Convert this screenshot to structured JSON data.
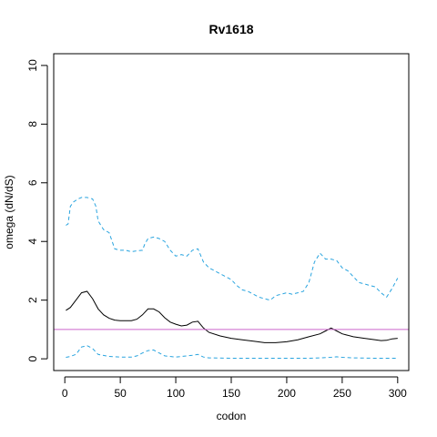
{
  "chart_data": {
    "type": "line",
    "title": "Rv1618",
    "xlabel": "codon",
    "ylabel": "omega (dN/dS)",
    "xlim": [
      -10,
      310
    ],
    "ylim": [
      -0.4,
      10.4
    ],
    "x_ticks": [
      0,
      50,
      100,
      150,
      200,
      250,
      300
    ],
    "y_ticks": [
      0,
      2,
      4,
      6,
      8,
      10
    ],
    "grid": false,
    "reference_line": {
      "y": 1,
      "color": "#cc66cc"
    },
    "series": [
      {
        "style": "solid",
        "color": "#000000",
        "x": [
          1,
          5,
          10,
          15,
          20,
          25,
          30,
          35,
          40,
          45,
          50,
          55,
          60,
          65,
          70,
          75,
          80,
          85,
          90,
          95,
          100,
          105,
          110,
          115,
          120,
          125,
          130,
          140,
          150,
          160,
          170,
          180,
          190,
          200,
          210,
          220,
          230,
          235,
          240,
          245,
          250,
          260,
          270,
          280,
          285,
          290,
          295,
          300
        ],
        "values": [
          1.65,
          1.75,
          2.0,
          2.25,
          2.3,
          2.05,
          1.7,
          1.5,
          1.38,
          1.32,
          1.3,
          1.3,
          1.3,
          1.35,
          1.5,
          1.7,
          1.7,
          1.6,
          1.4,
          1.25,
          1.18,
          1.12,
          1.15,
          1.25,
          1.28,
          1.05,
          0.9,
          0.78,
          0.7,
          0.65,
          0.6,
          0.55,
          0.55,
          0.58,
          0.65,
          0.75,
          0.85,
          0.95,
          1.05,
          0.95,
          0.85,
          0.75,
          0.7,
          0.65,
          0.62,
          0.63,
          0.68,
          0.7
        ]
      },
      {
        "style": "dashed",
        "color": "#29a4df",
        "x": [
          1,
          3,
          5,
          8,
          10,
          12,
          15,
          20,
          25,
          28,
          30,
          35,
          40,
          45,
          50,
          55,
          60,
          65,
          70,
          72,
          75,
          80,
          85,
          90,
          95,
          100,
          105,
          110,
          115,
          120,
          125,
          130,
          135,
          140,
          145,
          150,
          155,
          160,
          165,
          170,
          175,
          180,
          185,
          190,
          195,
          200,
          205,
          210,
          215,
          220,
          225,
          230,
          235,
          240,
          245,
          250,
          255,
          260,
          265,
          270,
          275,
          280,
          285,
          290,
          295,
          300
        ],
        "values": [
          4.55,
          4.6,
          5.2,
          5.35,
          5.4,
          5.45,
          5.5,
          5.5,
          5.45,
          5.2,
          4.7,
          4.4,
          4.3,
          3.75,
          3.7,
          3.7,
          3.65,
          3.68,
          3.7,
          3.9,
          4.1,
          4.15,
          4.1,
          4.0,
          3.7,
          3.5,
          3.55,
          3.5,
          3.7,
          3.75,
          3.3,
          3.1,
          3.0,
          2.9,
          2.8,
          2.7,
          2.5,
          2.35,
          2.3,
          2.2,
          2.1,
          2.05,
          2.0,
          2.15,
          2.2,
          2.25,
          2.2,
          2.25,
          2.3,
          2.6,
          3.3,
          3.6,
          3.4,
          3.4,
          3.35,
          3.1,
          3.0,
          2.8,
          2.6,
          2.55,
          2.5,
          2.45,
          2.25,
          2.1,
          2.4,
          2.75
        ]
      },
      {
        "style": "dashed",
        "color": "#29a4df",
        "x": [
          1,
          5,
          10,
          15,
          20,
          25,
          30,
          40,
          50,
          60,
          65,
          70,
          75,
          80,
          85,
          90,
          100,
          110,
          115,
          120,
          125,
          130,
          150,
          170,
          200,
          220,
          230,
          240,
          245,
          250,
          260,
          280,
          300
        ],
        "values": [
          0.05,
          0.08,
          0.15,
          0.4,
          0.45,
          0.35,
          0.15,
          0.08,
          0.06,
          0.06,
          0.1,
          0.2,
          0.28,
          0.3,
          0.2,
          0.1,
          0.06,
          0.1,
          0.12,
          0.15,
          0.06,
          0.03,
          0.02,
          0.02,
          0.02,
          0.02,
          0.03,
          0.05,
          0.07,
          0.05,
          0.03,
          0.02,
          0.02
        ]
      }
    ]
  }
}
